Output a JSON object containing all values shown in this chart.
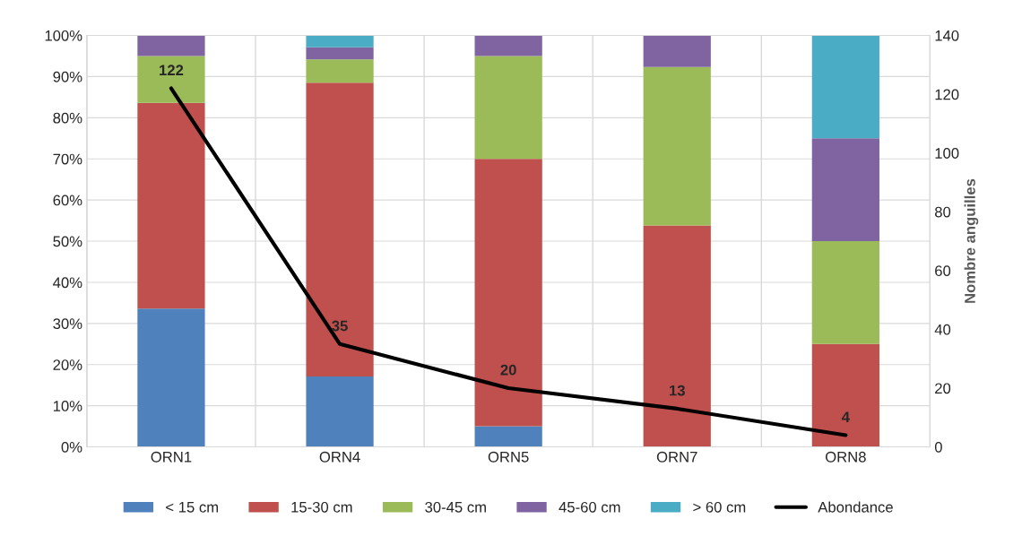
{
  "chart_data": {
    "type": "bar",
    "stacked": true,
    "categories": [
      "ORN1",
      "ORN4",
      "ORN5",
      "ORN7",
      "ORN8"
    ],
    "ylim": [
      0,
      100
    ],
    "yticks": [
      {
        "value": 0,
        "label": "0%"
      },
      {
        "value": 10,
        "label": "10%"
      },
      {
        "value": 20,
        "label": "20%"
      },
      {
        "value": 30,
        "label": "30%"
      },
      {
        "value": 40,
        "label": "40%"
      },
      {
        "value": 50,
        "label": "50%"
      },
      {
        "value": 60,
        "label": "60%"
      },
      {
        "value": 70,
        "label": "70%"
      },
      {
        "value": 80,
        "label": "80%"
      },
      {
        "value": 90,
        "label": "90%"
      },
      {
        "value": 100,
        "label": "100%"
      }
    ],
    "y2lim": [
      0,
      140
    ],
    "y2ticks": [
      0,
      20,
      40,
      60,
      80,
      100,
      120,
      140
    ],
    "y2label": "Nombre anguilles",
    "grid": true,
    "legend": "bottom",
    "series": [
      {
        "name": "< 15 cm",
        "color": "#4f81bd",
        "values": [
          33.6,
          17.1,
          5,
          0,
          0
        ]
      },
      {
        "name": "15-30 cm",
        "color": "#c0504d",
        "values": [
          50.0,
          71.4,
          65,
          53.8,
          25
        ]
      },
      {
        "name": "30-45 cm",
        "color": "#9bbb59",
        "values": [
          11.4,
          5.7,
          25,
          38.5,
          25
        ]
      },
      {
        "name": "45-60 cm",
        "color": "#8064a2",
        "values": [
          5.0,
          2.9,
          5,
          7.7,
          25
        ]
      },
      {
        "name": "> 60 cm",
        "color": "#4bacc6",
        "values": [
          0,
          2.9,
          0,
          0,
          25
        ]
      },
      {
        "name": "Abondance",
        "type": "line",
        "axis": "y2",
        "color": "#000000",
        "values": [
          122,
          35,
          20,
          13,
          4
        ],
        "value_labels": [
          "122",
          "35",
          "20",
          "13",
          "4"
        ]
      }
    ]
  }
}
